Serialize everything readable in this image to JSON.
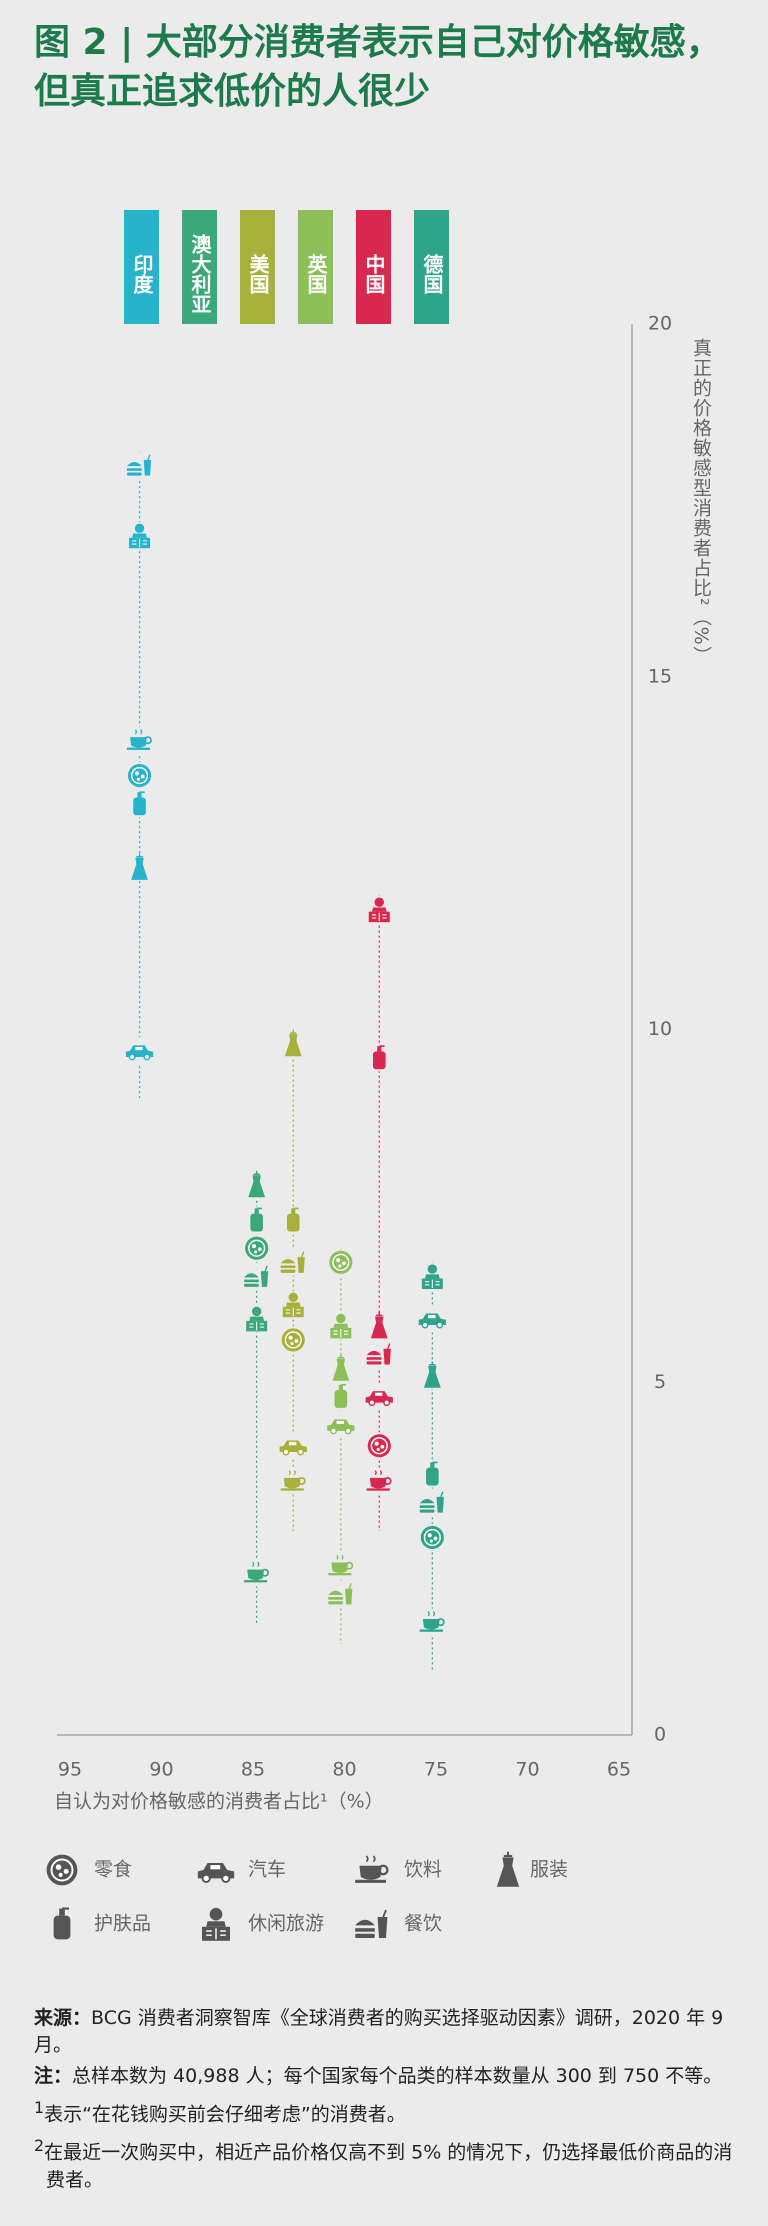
{
  "chart_data": {
    "type": "dot",
    "title": "图 2 | 大部分消费者表示自己对价格敏感，但真正追求低价的人很少",
    "x_label": "自认为对价格敏感的消费者占比¹（%）",
    "y_label": "真正的价格敏感型消费者占比²（%）",
    "xlim": [
      95,
      65
    ],
    "xticks": [
      95,
      90,
      85,
      80,
      75,
      70,
      65
    ],
    "ylim": [
      0,
      20
    ],
    "yticks": [
      0,
      5,
      10,
      15,
      20
    ],
    "categories": [
      "零食",
      "汽车",
      "饮料",
      "服装",
      "护肤品",
      "休闲旅游",
      "餐饮"
    ],
    "series": [
      {
        "name": "印度",
        "color": "#27b3c9",
        "x": 91.2,
        "values": [
          13.6,
          9.7,
          14.1,
          12.3,
          13.2,
          17.0,
          18.0
        ]
      },
      {
        "name": "澳大利亚",
        "color": "#3aa879",
        "x": 84.8,
        "values": [
          6.9,
          null,
          2.3,
          7.8,
          7.3,
          5.9,
          6.5
        ]
      },
      {
        "name": "美国",
        "color": "#a7b03a",
        "x": 82.8,
        "values": [
          5.6,
          4.1,
          3.6,
          9.8,
          7.3,
          6.1,
          6.7
        ]
      },
      {
        "name": "英国",
        "color": "#8cbf58",
        "x": 80.2,
        "values": [
          6.7,
          4.4,
          2.4,
          5.2,
          4.8,
          5.8,
          2.0
        ]
      },
      {
        "name": "中国",
        "color": "#d8284f",
        "x": 78.1,
        "values": [
          4.1,
          4.8,
          3.6,
          5.8,
          9.6,
          11.7,
          5.4
        ]
      },
      {
        "name": "德国",
        "color": "#2ea58a",
        "x": 75.2,
        "values": [
          2.8,
          5.9,
          1.6,
          5.1,
          3.7,
          6.5,
          3.3
        ]
      }
    ]
  },
  "footnotes": {
    "source": {
      "label": "来源：",
      "text": "BCG 消费者洞察智库《全球消费者的购买选择驱动因素》调研，2020 年 9 月。"
    },
    "note": {
      "label": "注：",
      "text": "总样本数为 40,988 人；每个国家每个品类的样本数量从 300 到 750 不等。"
    },
    "notes": [
      {
        "mark": "1",
        "text": "表示“在花钱购买前会仔细考虑”的消费者。"
      },
      {
        "mark": "2",
        "text": "在最近一次购买中，相近产品价格仅高不到 5% 的情况下，仍选择最低价商品的消费者。"
      }
    ]
  }
}
